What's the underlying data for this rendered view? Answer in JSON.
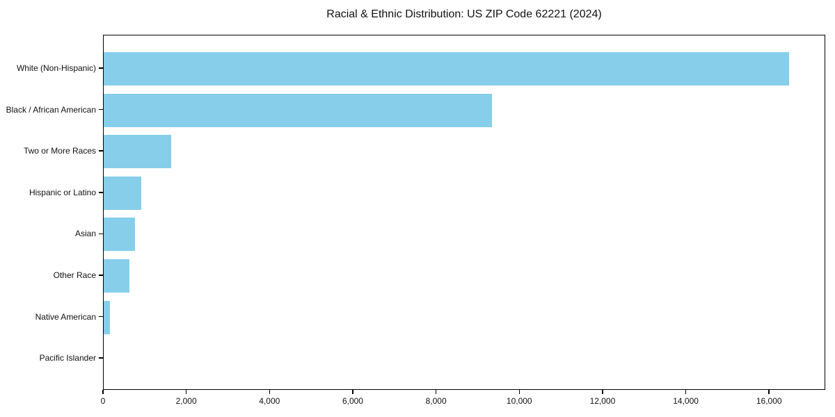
{
  "chart_data": {
    "type": "bar",
    "orientation": "horizontal",
    "title": "Racial & Ethnic Distribution: US ZIP Code 62221 (2024)",
    "categories": [
      "White (Non-Hispanic)",
      "Black / African American",
      "Two or More Races",
      "Hispanic or Latino",
      "Asian",
      "Other Race",
      "Native American",
      "Pacific Islander"
    ],
    "values": [
      16500,
      9350,
      1620,
      900,
      750,
      620,
      150,
      0
    ],
    "xlabel": "",
    "ylabel": "",
    "xlim": [
      0,
      17350
    ],
    "x_ticks": [
      0,
      2000,
      4000,
      6000,
      8000,
      10000,
      12000,
      14000,
      16000
    ],
    "x_tick_labels": [
      "0",
      "2,000",
      "4,000",
      "6,000",
      "8,000",
      "10,000",
      "12,000",
      "14,000",
      "16,000"
    ],
    "bar_color": "#87CEEB",
    "frame_color": "#000000",
    "grid": false,
    "legend": "none"
  }
}
